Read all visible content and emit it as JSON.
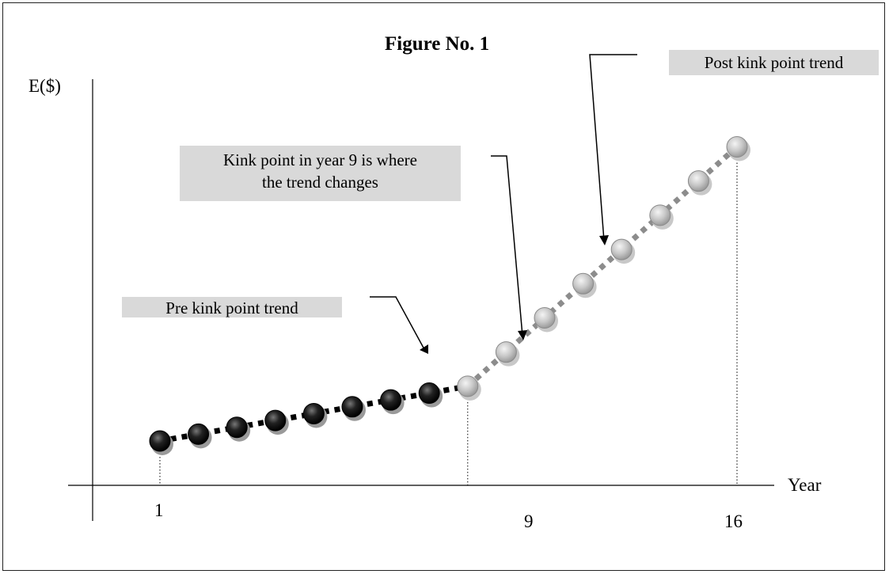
{
  "chart_data": {
    "type": "line",
    "title": "Figure No. 1",
    "xlabel": "Year",
    "ylabel": "E($)",
    "x_tick_labels": [
      "1",
      "9",
      "16"
    ],
    "kink_year": 9,
    "series": [
      {
        "name": "Pre kink point trend",
        "color": "#000000",
        "x": [
          1,
          2,
          3,
          4,
          5,
          6,
          7,
          8,
          9
        ],
        "y": [
          1.0,
          1.15,
          1.3,
          1.45,
          1.6,
          1.75,
          1.9,
          2.05,
          2.2
        ]
      },
      {
        "name": "Post kink point trend",
        "color": "#999999",
        "x": [
          9,
          10,
          11,
          12,
          13,
          14,
          15,
          16
        ],
        "y": [
          2.2,
          2.95,
          3.7,
          4.45,
          5.2,
          5.95,
          6.7,
          7.45
        ]
      }
    ],
    "annotations": {
      "pre_kink": "Pre kink point trend",
      "kink_line1": "Kink point in year 9 is where",
      "kink_line2": "the trend changes",
      "post_kink": "Post kink point trend"
    }
  }
}
